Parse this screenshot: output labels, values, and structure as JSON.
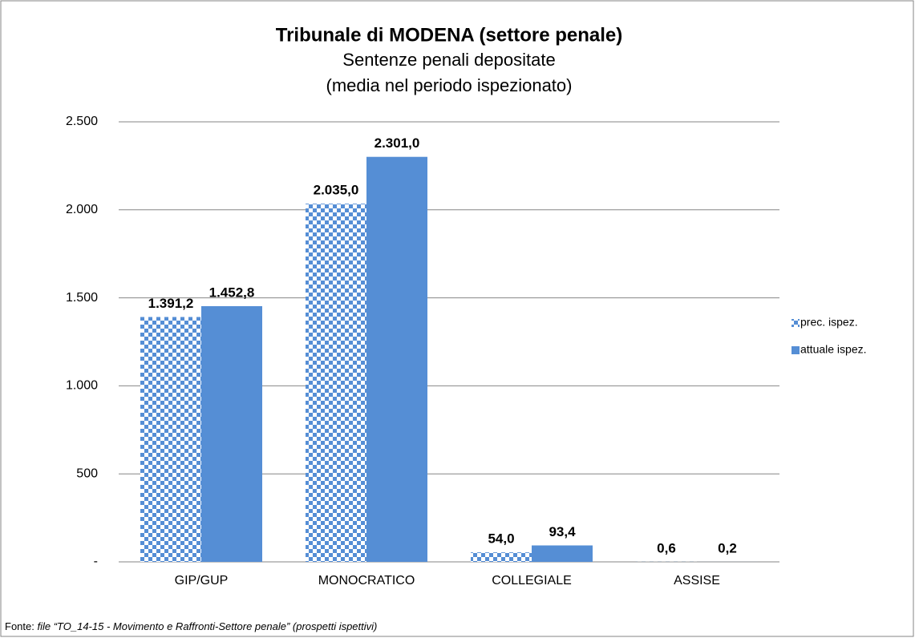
{
  "chart_data": {
    "type": "bar",
    "title": "Tribunale di MODENA (settore penale)",
    "subtitle": [
      "Sentenze penali depositate",
      "(media nel periodo ispezionato)"
    ],
    "categories": [
      "GIP/GUP",
      "MONOCRATICO",
      "COLLEGIALE",
      "ASSISE"
    ],
    "series": [
      {
        "name": "prec. ispez.",
        "color": "#558ed5",
        "pattern": "checker",
        "values": [
          1391.2,
          2035.0,
          54.0,
          0.6
        ],
        "value_labels": [
          "1.391,2",
          "2.035,0",
          "54,0",
          "0,6"
        ]
      },
      {
        "name": "attuale ispez.",
        "color": "#558ed5",
        "values": [
          1452.8,
          2301.0,
          93.4,
          0.2
        ],
        "value_labels": [
          "1.452,8",
          "2.301,0",
          "93,4",
          "0,2"
        ]
      }
    ],
    "ylim": [
      0,
      2500
    ],
    "yticks": [
      {
        "value": 0,
        "label": "-"
      },
      500,
      {
        "value": 1000,
        "label": "1.000"
      },
      {
        "value": 1500,
        "label": "1.500"
      },
      {
        "value": 2000,
        "label": "2.000"
      },
      {
        "value": 2500,
        "label": "2.500"
      }
    ],
    "grid": true,
    "legend": "right",
    "source": {
      "label": "Fonte:",
      "text": "file “TO_14-15 - Movimento e Raffronti-Settore penale” (prospetti ispettivi)"
    }
  }
}
